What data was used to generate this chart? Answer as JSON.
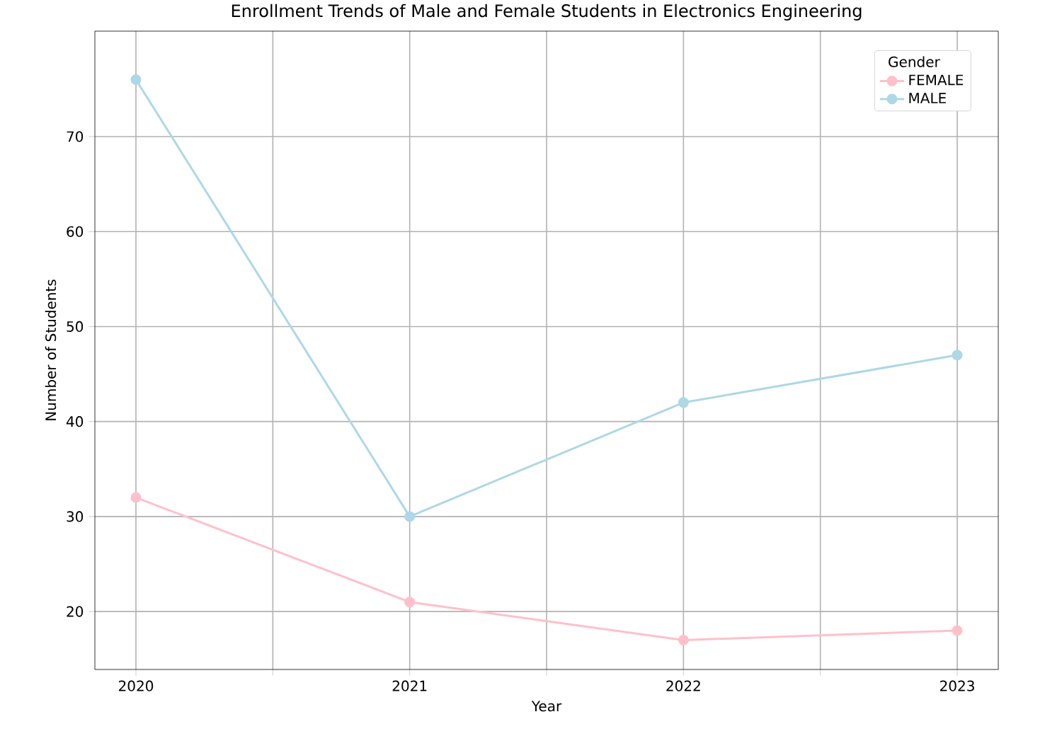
{
  "chart_data": {
    "type": "line",
    "title": "Enrollment Trends of Male and Female Students in Electronics Engineering",
    "xlabel": "Year",
    "ylabel": "Number of Students",
    "legend_title": "Gender",
    "x": [
      2020,
      2021,
      2022,
      2023
    ],
    "series": [
      {
        "name": "FEMALE",
        "color": "#ffc0cb",
        "values": [
          32,
          21,
          17,
          18
        ]
      },
      {
        "name": "MALE",
        "color": "#add8e6",
        "values": [
          76,
          30,
          42,
          47
        ]
      }
    ],
    "xlim": [
      2019.85,
      2023.15
    ],
    "ylim": [
      13.9,
      81.1
    ],
    "xticks": [
      2020,
      {
        "value": 2020.5,
        "label": null
      },
      2021,
      {
        "value": 2021.5,
        "label": null
      },
      2022,
      {
        "value": 2022.5,
        "label": null
      },
      2023
    ],
    "yticks": [
      20,
      30,
      40,
      50,
      60,
      70
    ],
    "grid": true,
    "legend": "top right",
    "marker": "circle",
    "line_style": "solid"
  }
}
